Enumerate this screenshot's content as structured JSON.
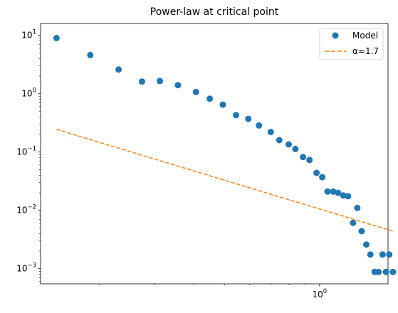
{
  "chart_data": {
    "type": "scatter",
    "title": "Power-law at critical point",
    "xlabel": "",
    "ylabel": "",
    "xscale": "log",
    "yscale": "log",
    "xlim": [
      0.13,
      1.65
    ],
    "ylim": [
      0.00055,
      16
    ],
    "x_ticks": [
      {
        "value": 1,
        "label": "10",
        "exp": "0"
      }
    ],
    "y_ticks": [
      {
        "value": 0.001,
        "label": "10",
        "exp": "−3"
      },
      {
        "value": 0.01,
        "label": "10",
        "exp": "−2"
      },
      {
        "value": 0.1,
        "label": "10",
        "exp": "−1"
      },
      {
        "value": 1,
        "label": "10",
        "exp": "0"
      },
      {
        "value": 10,
        "label": "10",
        "exp": "1"
      }
    ],
    "legend_position": "upper right",
    "series": [
      {
        "name": "Model",
        "kind": "scatter",
        "color": "#1f77b4",
        "points": [
          [
            0.146,
            9.0
          ],
          [
            0.187,
            4.6
          ],
          [
            0.23,
            2.6
          ],
          [
            0.273,
            1.62
          ],
          [
            0.311,
            1.65
          ],
          [
            0.355,
            1.4
          ],
          [
            0.405,
            1.07
          ],
          [
            0.448,
            0.82
          ],
          [
            0.493,
            0.65
          ],
          [
            0.543,
            0.43
          ],
          [
            0.594,
            0.37
          ],
          [
            0.642,
            0.285
          ],
          [
            0.7,
            0.22
          ],
          [
            0.745,
            0.16
          ],
          [
            0.798,
            0.135
          ],
          [
            0.838,
            0.113
          ],
          [
            0.886,
            0.082
          ],
          [
            0.929,
            0.073
          ],
          [
            0.978,
            0.044
          ],
          [
            1.02,
            0.037
          ],
          [
            1.06,
            0.021
          ],
          [
            1.105,
            0.021
          ],
          [
            1.145,
            0.02
          ],
          [
            1.19,
            0.018
          ],
          [
            1.232,
            0.0175
          ],
          [
            1.278,
            0.0061
          ],
          [
            1.318,
            0.011
          ],
          [
            1.36,
            0.0044
          ],
          [
            1.408,
            0.0026
          ],
          [
            1.45,
            0.00175
          ],
          [
            1.495,
            0.00088
          ],
          [
            1.54,
            0.00088
          ],
          [
            1.585,
            0.00175
          ],
          [
            1.625,
            0.00088
          ],
          [
            1.665,
            0.00175
          ],
          [
            1.71,
            0.00088
          ]
        ]
      },
      {
        "name": "α≈1.7",
        "kind": "line",
        "style": "dashed",
        "color": "#ff7f0e",
        "points": [
          [
            0.146,
            0.245
          ],
          [
            1.71,
            0.0044
          ]
        ]
      }
    ]
  }
}
